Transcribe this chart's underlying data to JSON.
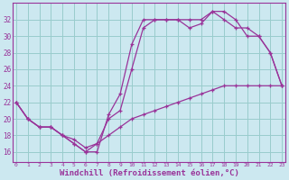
{
  "bg_color": "#cce8f0",
  "line_color": "#993399",
  "grid_color": "#99cccc",
  "xlabel": "Windchill (Refroidissement éolien,°C)",
  "xlabel_fontsize": 6.5,
  "xtick_labels": [
    "0",
    "1",
    "2",
    "3",
    "4",
    "5",
    "6",
    "7",
    "8",
    "9",
    "10",
    "11",
    "12",
    "13",
    "14",
    "15",
    "16",
    "17",
    "18",
    "19",
    "20",
    "21",
    "22",
    "23"
  ],
  "ytick_values": [
    16,
    18,
    20,
    22,
    24,
    26,
    28,
    30,
    32
  ],
  "xlim": [
    -0.3,
    23.3
  ],
  "ylim": [
    14.8,
    34.0
  ],
  "curve1_x": [
    0,
    1,
    2,
    3,
    4,
    5,
    6,
    7,
    8,
    9,
    10,
    11,
    12,
    13,
    14,
    15,
    16,
    17,
    18,
    19,
    20,
    21,
    22,
    23
  ],
  "curve1_y": [
    22,
    20,
    19,
    19,
    18,
    17,
    16,
    16,
    20.5,
    23,
    29,
    32,
    32,
    32,
    32,
    32,
    32,
    33,
    33,
    32,
    30,
    30,
    28,
    24
  ],
  "curve2_x": [
    0,
    1,
    2,
    3,
    4,
    5,
    6,
    7,
    8,
    9,
    10,
    11,
    12,
    13,
    14,
    15,
    16,
    17,
    18,
    19,
    20,
    21,
    22,
    23
  ],
  "curve2_y": [
    22,
    20,
    19,
    19,
    18,
    17.5,
    16.5,
    17,
    20,
    21,
    26,
    31,
    32,
    32,
    32,
    31,
    31.5,
    33,
    32,
    31,
    31,
    30,
    28,
    24
  ],
  "curve3_x": [
    0,
    1,
    2,
    3,
    4,
    5,
    6,
    7,
    8,
    9,
    10,
    11,
    12,
    13,
    14,
    15,
    16,
    17,
    18,
    19,
    20,
    21,
    22,
    23
  ],
  "curve3_y": [
    22,
    20,
    19,
    19,
    18,
    17,
    16,
    17,
    18,
    19,
    20,
    20.5,
    21,
    21.5,
    22,
    22.5,
    23,
    23.5,
    24,
    24,
    24,
    24,
    24,
    24
  ],
  "marker_size": 3,
  "linewidth": 0.9
}
